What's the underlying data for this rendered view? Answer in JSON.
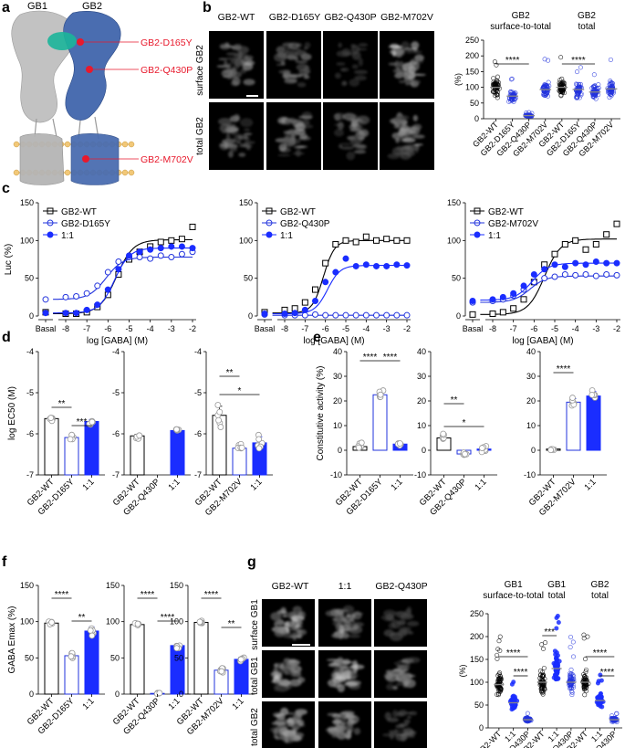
{
  "colors": {
    "wt": "#000000",
    "mutant": "#2233dd",
    "coexp": "#1a2dff",
    "red": "#e8192c",
    "gb2_blue": "#3a5fa8",
    "gb1_gray": "#b9b9b9"
  },
  "panels": {
    "a": "a",
    "b": "b",
    "c": "c",
    "d": "d",
    "e": "e",
    "f": "f",
    "g": "g"
  },
  "panel_a": {
    "top_labels": [
      "GB1",
      "GB2"
    ],
    "callouts": [
      "GB2-D165Y",
      "GB2-Q430P",
      "GB2-M702V"
    ]
  },
  "panel_b": {
    "col_headers": [
      "GB2-WT",
      "GB2-D165Y",
      "GB2-Q430P",
      "GB2-M702V"
    ],
    "row_labels": [
      "surface GB2",
      "total GB2"
    ]
  },
  "panel_g": {
    "col_headers": [
      "GB2-WT",
      "1:1",
      "GB2-Q430P"
    ],
    "row_labels": [
      "surface GB1",
      "total GB1",
      "total GB2"
    ]
  },
  "chart_data": [
    {
      "id": "b-scatter",
      "type": "scatter",
      "group_titles": [
        "GB2 surface-to-total",
        "GB2 total"
      ],
      "ylabel": "(%)",
      "ylim": [
        0,
        250
      ],
      "yticks": [
        0,
        50,
        100,
        150,
        200,
        250
      ],
      "categories": [
        "GB2-WT",
        "GB2-D165Y",
        "GB2-Q430P",
        "GB2-M702V",
        "GB2-WT",
        "GB2-D165Y",
        "GB2-Q430P",
        "GB2-M702V"
      ],
      "medians": [
        100,
        72,
        10,
        93,
        100,
        93,
        85,
        95
      ],
      "significance": [
        {
          "from": 0,
          "to": 2,
          "label": "****"
        },
        {
          "from": 4,
          "to": 6,
          "label": "****"
        }
      ]
    },
    {
      "id": "c1",
      "type": "line",
      "xlabel": "log [GABA] (M)",
      "ylabel": "Luc (%)",
      "ylim": [
        0,
        150
      ],
      "yticks": [
        0,
        50,
        100,
        150
      ],
      "x_ticks": [
        "Basal",
        "-8",
        "-7",
        "-6",
        "-5",
        "-4",
        "-3",
        "-2"
      ],
      "series": [
        {
          "name": "GB2-WT",
          "style": "open-square",
          "x": [
            -9,
            -8,
            -7.5,
            -7,
            -6.5,
            -6,
            -5.5,
            -5,
            -4.5,
            -4,
            -3.5,
            -3,
            -2.5,
            -2
          ],
          "y": [
            5,
            3,
            3,
            5,
            12,
            28,
            55,
            75,
            85,
            92,
            98,
            100,
            102,
            118
          ],
          "curve": {
            "bottom": 3,
            "top": 101,
            "ec50": -5.6,
            "hill": 1.1
          }
        },
        {
          "name": "GB2-D165Y",
          "style": "open-circle",
          "x": [
            -9,
            -8,
            -7.5,
            -7,
            -6.5,
            -6,
            -5.5,
            -5,
            -4.5,
            -4,
            -3.5,
            -3,
            -2.5,
            -2
          ],
          "y": [
            22,
            25,
            26,
            30,
            40,
            58,
            72,
            78,
            78,
            76,
            80,
            78,
            82,
            85
          ],
          "curve": {
            "bottom": 22,
            "top": 78,
            "ec50": -6.1,
            "hill": 1.1
          }
        },
        {
          "name": "1:1",
          "style": "filled-circle",
          "x": [
            -9,
            -8,
            -7.5,
            -7,
            -6.5,
            -6,
            -5.5,
            -5,
            -4.5,
            -4,
            -3.5,
            -3,
            -2.5,
            -2
          ],
          "y": [
            4,
            4,
            4,
            8,
            15,
            35,
            62,
            80,
            85,
            88,
            90,
            92,
            92,
            90
          ],
          "curve": {
            "bottom": 4,
            "top": 90,
            "ec50": -5.7,
            "hill": 1.2
          }
        }
      ]
    },
    {
      "id": "c2",
      "type": "line",
      "xlabel": "log [GABA] (M)",
      "ylim": [
        0,
        150
      ],
      "yticks": [
        0,
        50,
        100,
        150
      ],
      "x_ticks": [
        "Basal",
        "-8",
        "-7",
        "-6",
        "-5",
        "-4",
        "-3",
        "-2"
      ],
      "series": [
        {
          "name": "GB2-WT",
          "style": "open-square",
          "x": [
            -9,
            -8,
            -7.5,
            -7,
            -6.5,
            -6,
            -5.5,
            -5,
            -4.5,
            -4,
            -3.5,
            -3,
            -2.5,
            -2
          ],
          "y": [
            5,
            8,
            10,
            18,
            35,
            70,
            95,
            100,
            98,
            105,
            100,
            102,
            100,
            100
          ],
          "curve": {
            "bottom": 4,
            "top": 100,
            "ec50": -6.1,
            "hill": 1.6
          }
        },
        {
          "name": "GB2-Q430P",
          "style": "open-circle",
          "x": [
            -9,
            -8,
            -7.5,
            -7,
            -6.5,
            -6,
            -5.5,
            -5,
            -4.5,
            -4,
            -3.5,
            -3,
            -2.5,
            -2
          ],
          "y": [
            2,
            1,
            1,
            1,
            2,
            1,
            1,
            1,
            1,
            1,
            1,
            1,
            1,
            1
          ],
          "curve": {
            "bottom": 1,
            "top": 1,
            "ec50": -6,
            "hill": 1
          }
        },
        {
          "name": "1:1",
          "style": "filled-circle",
          "x": [
            -9,
            -8,
            -7.5,
            -7,
            -6.5,
            -6,
            -5.5,
            -5,
            -4.5,
            -4,
            -3.5,
            -3,
            -2.5,
            -2
          ],
          "y": [
            3,
            3,
            4,
            8,
            20,
            45,
            58,
            76,
            66,
            68,
            66,
            66,
            68,
            67
          ],
          "curve": {
            "bottom": 3,
            "top": 67,
            "ec50": -5.9,
            "hill": 1.4
          }
        }
      ]
    },
    {
      "id": "c3",
      "type": "line",
      "xlabel": "log [GABA] (M)",
      "ylim": [
        0,
        150
      ],
      "yticks": [
        0,
        50,
        100,
        150
      ],
      "x_ticks": [
        "Basal",
        "-8",
        "-7",
        "-6",
        "-5",
        "-4",
        "-3",
        "-2"
      ],
      "series": [
        {
          "name": "GB2-WT",
          "style": "open-square",
          "x": [
            -9,
            -8,
            -7.5,
            -7,
            -6.5,
            -6,
            -5.5,
            -5,
            -4.5,
            -4,
            -3.5,
            -3,
            -2.5,
            -2
          ],
          "y": [
            2,
            3,
            5,
            10,
            22,
            45,
            68,
            82,
            95,
            100,
            88,
            95,
            108,
            122
          ],
          "curve": {
            "bottom": 2,
            "top": 102,
            "ec50": -5.5,
            "hill": 1.1
          }
        },
        {
          "name": "GB2-M702V",
          "style": "open-circle",
          "x": [
            -9,
            -8,
            -7.5,
            -7,
            -6.5,
            -6,
            -5.5,
            -5,
            -4.5,
            -4,
            -3.5,
            -3,
            -2.5,
            -2
          ],
          "y": [
            18,
            20,
            22,
            27,
            35,
            45,
            50,
            52,
            55,
            54,
            55,
            53,
            55,
            54
          ],
          "curve": {
            "bottom": 18,
            "top": 53,
            "ec50": -6.2,
            "hill": 1.1
          }
        },
        {
          "name": "1:1",
          "style": "filled-circle",
          "x": [
            -9,
            -8,
            -7.5,
            -7,
            -6.5,
            -6,
            -5.5,
            -5,
            -4.5,
            -4,
            -3.5,
            -3,
            -2.5,
            -2
          ],
          "y": [
            20,
            22,
            25,
            30,
            40,
            55,
            62,
            68,
            65,
            70,
            68,
            72,
            70,
            70
          ],
          "curve": {
            "bottom": 21,
            "top": 70,
            "ec50": -6.1,
            "hill": 1.1
          }
        }
      ]
    },
    {
      "id": "d1",
      "type": "bar",
      "ylabel": "log EC50 (M)",
      "ylim": [
        -7,
        -4
      ],
      "yticks": [
        -4,
        -5,
        -6,
        -7
      ],
      "categories": [
        "GB2-WT",
        "GB2-D165Y",
        "1:1"
      ],
      "values": [
        -5.63,
        -6.09,
        -5.7
      ],
      "errors": [
        0.05,
        0.06,
        0.05
      ],
      "significance": [
        {
          "from": 0,
          "to": 1,
          "label": "**"
        },
        {
          "from": 1,
          "to": 2,
          "label": "***"
        }
      ]
    },
    {
      "id": "d2",
      "type": "bar",
      "ylim": [
        -7,
        -4
      ],
      "yticks": [
        -4,
        -5,
        -6,
        -7
      ],
      "categories": [
        "GB2-WT",
        "GB2-Q430P",
        "1:1"
      ],
      "values": [
        -6.05,
        null,
        -5.92
      ],
      "errors": [
        0.04,
        0,
        0.04
      ],
      "significance": []
    },
    {
      "id": "d3",
      "type": "bar",
      "ylim": [
        -7,
        -4
      ],
      "yticks": [
        -4,
        -5,
        -6,
        -7
      ],
      "categories": [
        "GB2-WT",
        "GB2-M702V",
        "1:1"
      ],
      "values": [
        -5.55,
        -6.35,
        -6.22
      ],
      "errors": [
        0.22,
        0.09,
        0.15
      ],
      "significance": [
        {
          "from": 0,
          "to": 1,
          "label": "**"
        },
        {
          "from": 0,
          "to": 2,
          "label": "*"
        }
      ]
    },
    {
      "id": "e1",
      "type": "bar",
      "ylabel": "Constitutive activity (%)",
      "ylim": [
        -10,
        40
      ],
      "yticks": [
        -10,
        0,
        10,
        20,
        30,
        40
      ],
      "categories": [
        "GB2-WT",
        "GB2-D165Y",
        "1:1"
      ],
      "values": [
        1.5,
        22.5,
        2.5
      ],
      "errors": [
        1,
        1.2,
        0.6
      ],
      "significance": [
        {
          "from": 0,
          "to": 1,
          "label": "****"
        },
        {
          "from": 1,
          "to": 2,
          "label": "****"
        }
      ]
    },
    {
      "id": "e2",
      "type": "bar",
      "ylim": [
        -10,
        40
      ],
      "yticks": [
        -10,
        0,
        10,
        20,
        30,
        40
      ],
      "categories": [
        "GB2-WT",
        "GB2-Q430P",
        "1:1"
      ],
      "values": [
        5,
        -1.5,
        0.5
      ],
      "errors": [
        1.8,
        0.4,
        1.1
      ],
      "significance": [
        {
          "from": 0,
          "to": 1,
          "label": "**"
        },
        {
          "from": 0,
          "to": 2,
          "label": "*"
        }
      ]
    },
    {
      "id": "e3",
      "type": "bar",
      "ylim": [
        -10,
        40
      ],
      "yticks": [
        -10,
        0,
        10,
        20,
        30,
        40
      ],
      "categories": [
        "GB2-WT",
        "GB2-M702V",
        "1:1"
      ],
      "values": [
        0.5,
        19.5,
        22
      ],
      "errors": [
        0.6,
        1.4,
        1.8
      ],
      "significance": [
        {
          "from": 0,
          "to": 1,
          "label": "****"
        }
      ]
    },
    {
      "id": "f1",
      "type": "bar",
      "ylabel": "GABA Emax (%)",
      "ylim": [
        0,
        150
      ],
      "yticks": [
        0,
        50,
        100,
        150
      ],
      "categories": [
        "GB2-WT",
        "GB2-D165Y",
        "1:1"
      ],
      "values": [
        98,
        53,
        87
      ],
      "errors": [
        1.5,
        3,
        6
      ],
      "significance": [
        {
          "from": 0,
          "to": 1,
          "label": "****"
        },
        {
          "from": 1,
          "to": 2,
          "label": "**"
        }
      ]
    },
    {
      "id": "f2",
      "type": "bar",
      "ylim": [
        0,
        150
      ],
      "yticks": [
        0,
        50,
        100,
        150
      ],
      "categories": [
        "GB2-WT",
        "GB2-Q430P",
        "1:1"
      ],
      "values": [
        96,
        1,
        67
      ],
      "errors": [
        1.5,
        0.5,
        2.5
      ],
      "significance": [
        {
          "from": 0,
          "to": 1,
          "label": "****"
        },
        {
          "from": 1,
          "to": 2,
          "label": "****"
        }
      ]
    },
    {
      "id": "f3",
      "type": "bar",
      "ylim": [
        0,
        150
      ],
      "yticks": [
        0,
        50,
        100,
        150
      ],
      "categories": [
        "GB2-WT",
        "GB2-M702V",
        "1:1"
      ],
      "values": [
        99,
        33,
        48
      ],
      "errors": [
        1.5,
        3,
        3
      ],
      "significance": [
        {
          "from": 0,
          "to": 1,
          "label": "****"
        },
        {
          "from": 1,
          "to": 2,
          "label": "**"
        }
      ]
    },
    {
      "id": "g-scatter",
      "type": "scatter",
      "group_titles": [
        "GB1 surface-to-total",
        "GB1 total",
        "GB2 total"
      ],
      "ylabel": "(%)",
      "ylim": [
        0,
        250
      ],
      "yticks": [
        0,
        50,
        100,
        150,
        200,
        250
      ],
      "categories": [
        "GB2-WT",
        "1:1",
        "GB2-Q430P",
        "GB2-WT",
        "1:1",
        "GB2-Q430P",
        "GB2-WT",
        "1:1",
        "GB2-Q430P"
      ],
      "medians": [
        95,
        55,
        18,
        100,
        130,
        100,
        100,
        60,
        18
      ],
      "significance": [
        {
          "from": 0,
          "to": 2,
          "label": "****"
        },
        {
          "from": 1,
          "to": 2,
          "label": "****"
        },
        {
          "from": 3,
          "to": 4,
          "label": "***"
        },
        {
          "from": 6,
          "to": 8,
          "label": "****"
        },
        {
          "from": 7,
          "to": 8,
          "label": "****"
        }
      ]
    }
  ]
}
